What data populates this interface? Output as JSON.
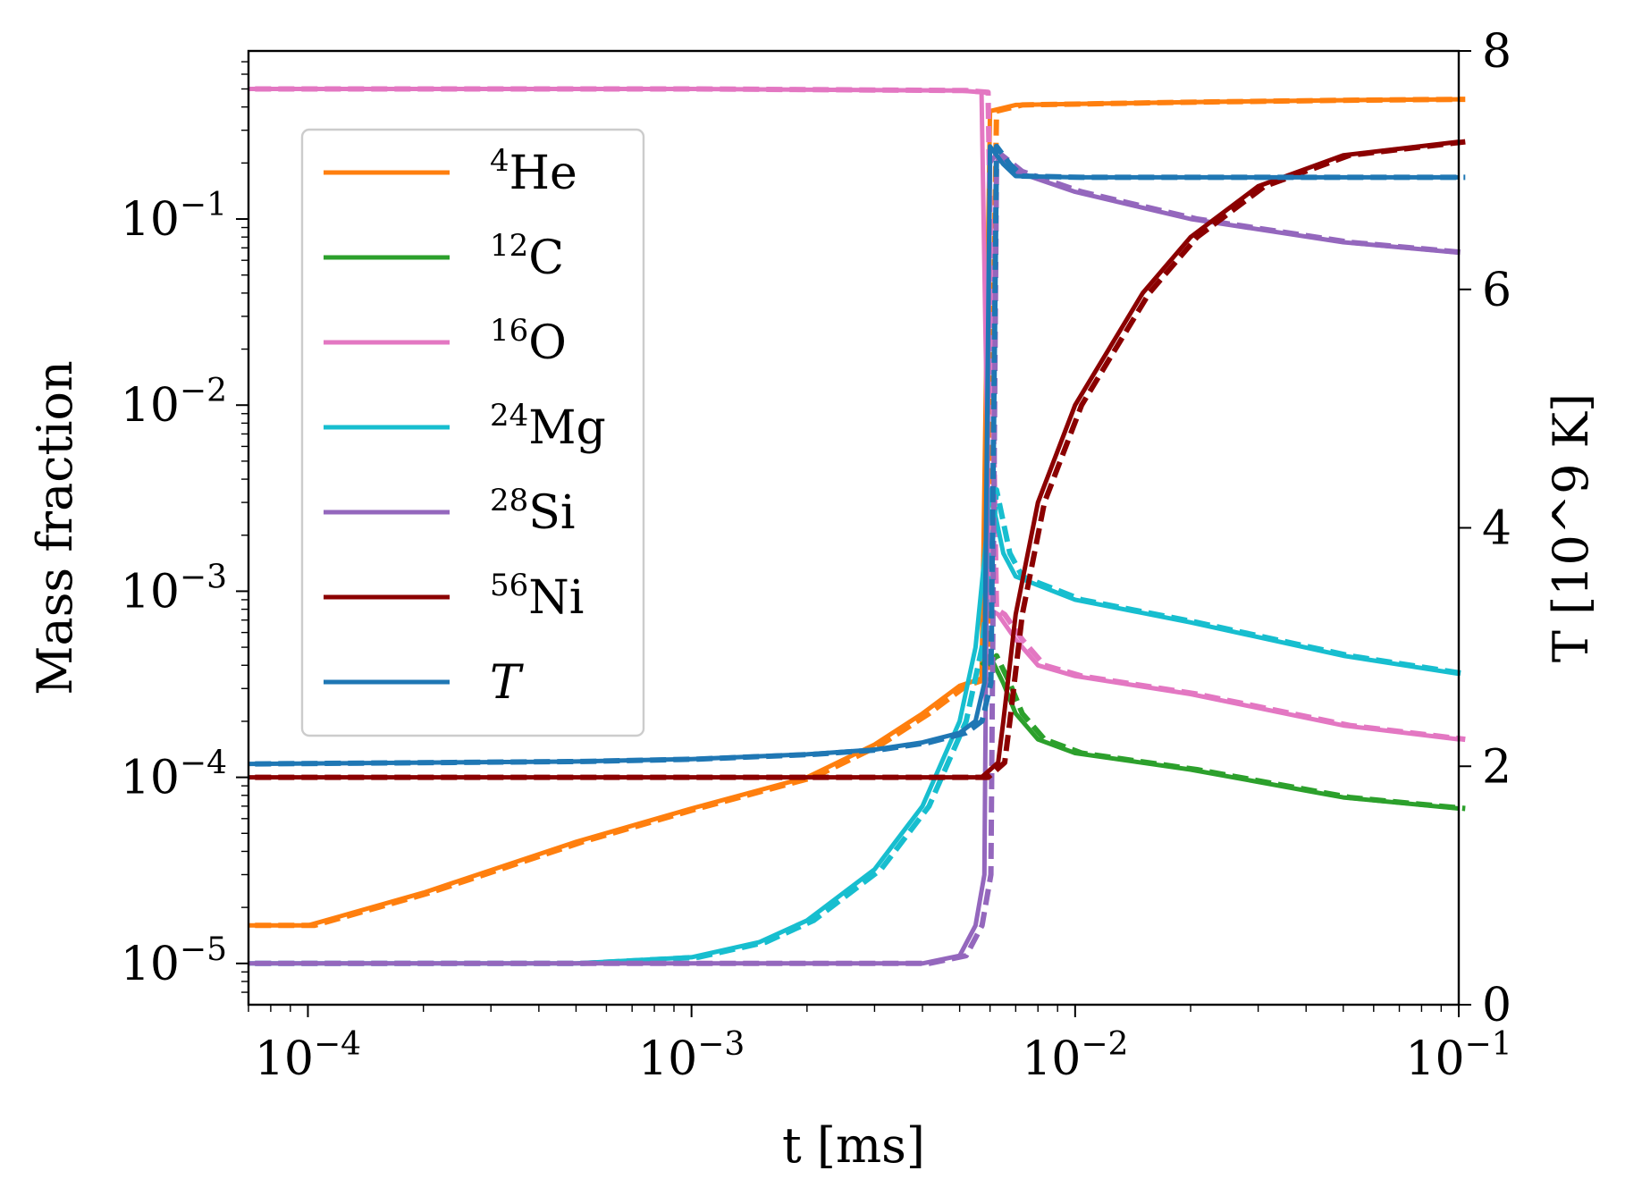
{
  "chart_data": {
    "type": "line",
    "xlabel": "t [ms]",
    "ylabel_left": "Mass fraction",
    "ylabel_right": "T [10^9 K]",
    "x_scale": "log",
    "y_left_scale": "log",
    "y_right_scale": "linear",
    "xlim": [
      7e-05,
      0.1
    ],
    "ylim_left": [
      6e-06,
      0.8
    ],
    "ylim_right": [
      0,
      8
    ],
    "legend_position": "upper-left",
    "grid": false,
    "x_ticks": [
      {
        "value": 0.0001,
        "mant": "10",
        "exp": "−4"
      },
      {
        "value": 0.001,
        "mant": "10",
        "exp": "−3"
      },
      {
        "value": 0.01,
        "mant": "10",
        "exp": "−2"
      },
      {
        "value": 0.1,
        "mant": "10",
        "exp": "−1"
      }
    ],
    "y_left_ticks": [
      {
        "value": 1e-05,
        "mant": "10",
        "exp": "−5"
      },
      {
        "value": 0.0001,
        "mant": "10",
        "exp": "−4"
      },
      {
        "value": 0.001,
        "mant": "10",
        "exp": "−3"
      },
      {
        "value": 0.01,
        "mant": "10",
        "exp": "−2"
      },
      {
        "value": 0.1,
        "mant": "10",
        "exp": "−1"
      }
    ],
    "y_right_ticks": [
      "0",
      "2",
      "4",
      "6",
      "8"
    ],
    "series": [
      {
        "name": "4He",
        "sup": "4",
        "base": "He",
        "italic": false,
        "color": "#ff7f0e",
        "axis": "left",
        "x": [
          7e-05,
          0.0001,
          0.0002,
          0.0005,
          0.001,
          0.002,
          0.003,
          0.004,
          0.005,
          0.0057,
          0.006,
          0.007,
          0.01,
          0.02,
          0.05,
          0.1
        ],
        "y": [
          1.6e-05,
          1.6e-05,
          2.4e-05,
          4.5e-05,
          6.8e-05,
          0.0001,
          0.00015,
          0.00022,
          0.00031,
          0.00034,
          0.38,
          0.41,
          0.415,
          0.425,
          0.435,
          0.44
        ]
      },
      {
        "name": "12C",
        "sup": "12",
        "base": "C",
        "italic": false,
        "color": "#2ca02c",
        "axis": "left",
        "x": [
          0.0057,
          0.006,
          0.0065,
          0.007,
          0.008,
          0.01,
          0.02,
          0.05,
          0.1
        ],
        "y": [
          0.0004,
          0.00045,
          0.00032,
          0.00022,
          0.00016,
          0.000135,
          0.00011,
          7.8e-05,
          6.8e-05
        ]
      },
      {
        "name": "16O",
        "sup": "16",
        "base": "O",
        "italic": false,
        "color": "#e377c2",
        "axis": "left",
        "x": [
          7e-05,
          0.001,
          0.005,
          0.0057,
          0.006,
          0.0063,
          0.007,
          0.008,
          0.01,
          0.02,
          0.05,
          0.1
        ],
        "y": [
          0.5,
          0.5,
          0.49,
          0.48,
          0.0008,
          0.00075,
          0.00055,
          0.0004,
          0.00035,
          0.00028,
          0.00019,
          0.00016
        ]
      },
      {
        "name": "24Mg",
        "sup": "24",
        "base": "Mg",
        "italic": false,
        "color": "#17becf",
        "axis": "left",
        "x": [
          7e-05,
          0.0005,
          0.001,
          0.0015,
          0.002,
          0.003,
          0.004,
          0.005,
          0.0055,
          0.0058,
          0.006,
          0.0065,
          0.007,
          0.01,
          0.02,
          0.05,
          0.1
        ],
        "y": [
          1e-05,
          1e-05,
          1.08e-05,
          1.3e-05,
          1.7e-05,
          3.2e-05,
          7e-05,
          0.0002,
          0.0005,
          0.0015,
          0.0035,
          0.0016,
          0.0012,
          0.0009,
          0.00068,
          0.00045,
          0.00036
        ]
      },
      {
        "name": "28Si",
        "sup": "28",
        "base": "Si",
        "italic": false,
        "color": "#9467bd",
        "axis": "left",
        "x": [
          7e-05,
          0.001,
          0.004,
          0.005,
          0.0055,
          0.0058,
          0.006,
          0.0062,
          0.007,
          0.01,
          0.02,
          0.05,
          0.1
        ],
        "y": [
          1e-05,
          1e-05,
          1e-05,
          1.1e-05,
          1.6e-05,
          3e-05,
          0.2,
          0.22,
          0.18,
          0.14,
          0.1,
          0.075,
          0.066
        ]
      },
      {
        "name": "56Ni",
        "sup": "56",
        "base": "Ni",
        "italic": false,
        "color": "#8b0000",
        "axis": "left",
        "x": [
          7e-05,
          0.0057,
          0.0063,
          0.0065,
          0.007,
          0.008,
          0.01,
          0.015,
          0.02,
          0.03,
          0.05,
          0.1
        ],
        "y": [
          0.0001,
          0.0001,
          0.00012,
          0.0002,
          0.00075,
          0.003,
          0.01,
          0.04,
          0.08,
          0.15,
          0.22,
          0.26
        ]
      },
      {
        "name": "T",
        "sup": "",
        "base": "T",
        "italic": true,
        "color": "#1f77b4",
        "axis": "right",
        "x": [
          7e-05,
          0.0005,
          0.001,
          0.002,
          0.003,
          0.004,
          0.005,
          0.0055,
          0.0058,
          0.006,
          0.0065,
          0.007,
          0.01,
          0.02,
          0.05,
          0.1
        ],
        "y": [
          2.02,
          2.04,
          2.06,
          2.1,
          2.14,
          2.2,
          2.28,
          2.38,
          2.7,
          7.2,
          7.05,
          6.95,
          6.94,
          6.94,
          6.94,
          6.94
        ]
      }
    ]
  }
}
